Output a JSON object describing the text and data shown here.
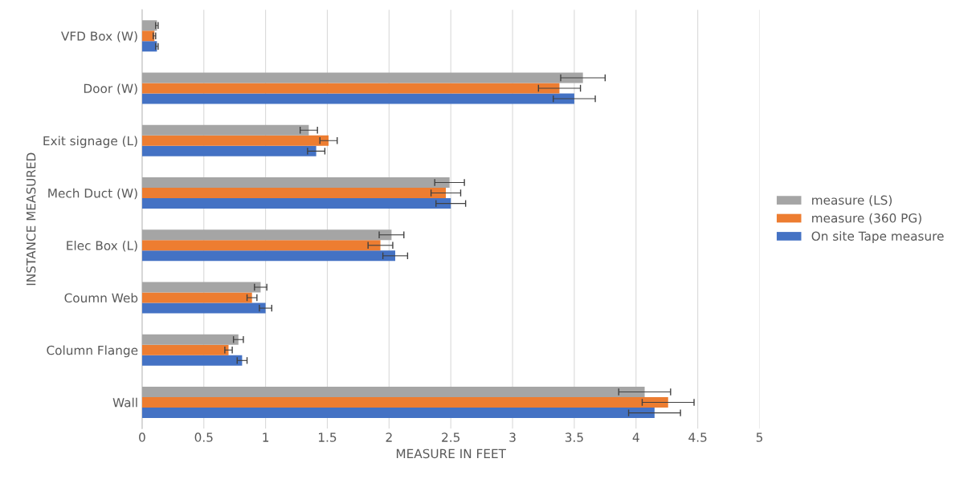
{
  "chart_data": {
    "type": "bar",
    "orientation": "horizontal",
    "xlabel": "MEASURE IN FEET",
    "ylabel": "INSTANCE MEASURED",
    "categories": [
      "VFD Box (W)",
      "Door (W)",
      "Exit signage (L)",
      "Mech Duct (W)",
      "Elec Box (L)",
      "Coumn Web",
      "Column Flange",
      "Wall"
    ],
    "series": [
      {
        "name": "On site Tape measure",
        "color": "#4472c4",
        "values": [
          0.12,
          3.5,
          1.41,
          2.5,
          2.05,
          1.0,
          0.81,
          4.15
        ],
        "errors": [
          0.01,
          0.17,
          0.07,
          0.12,
          0.1,
          0.05,
          0.04,
          0.21
        ]
      },
      {
        "name": "measure (360 PG)",
        "color": "#ed7d31",
        "values": [
          0.1,
          3.38,
          1.51,
          2.46,
          1.93,
          0.89,
          0.7,
          4.26
        ],
        "errors": [
          0.01,
          0.17,
          0.07,
          0.12,
          0.1,
          0.04,
          0.03,
          0.21
        ]
      },
      {
        "name": "measure (LS)",
        "color": "#a5a5a5",
        "values": [
          0.12,
          3.57,
          1.35,
          2.49,
          2.02,
          0.96,
          0.78,
          4.07
        ],
        "errors": [
          0.01,
          0.18,
          0.07,
          0.12,
          0.1,
          0.05,
          0.04,
          0.21
        ]
      }
    ],
    "xlim": [
      0,
      5
    ],
    "xticks": [
      0,
      0.5,
      1,
      1.5,
      2,
      2.5,
      3,
      3.5,
      4,
      4.5,
      5
    ],
    "grid": "x",
    "legend": "right"
  }
}
